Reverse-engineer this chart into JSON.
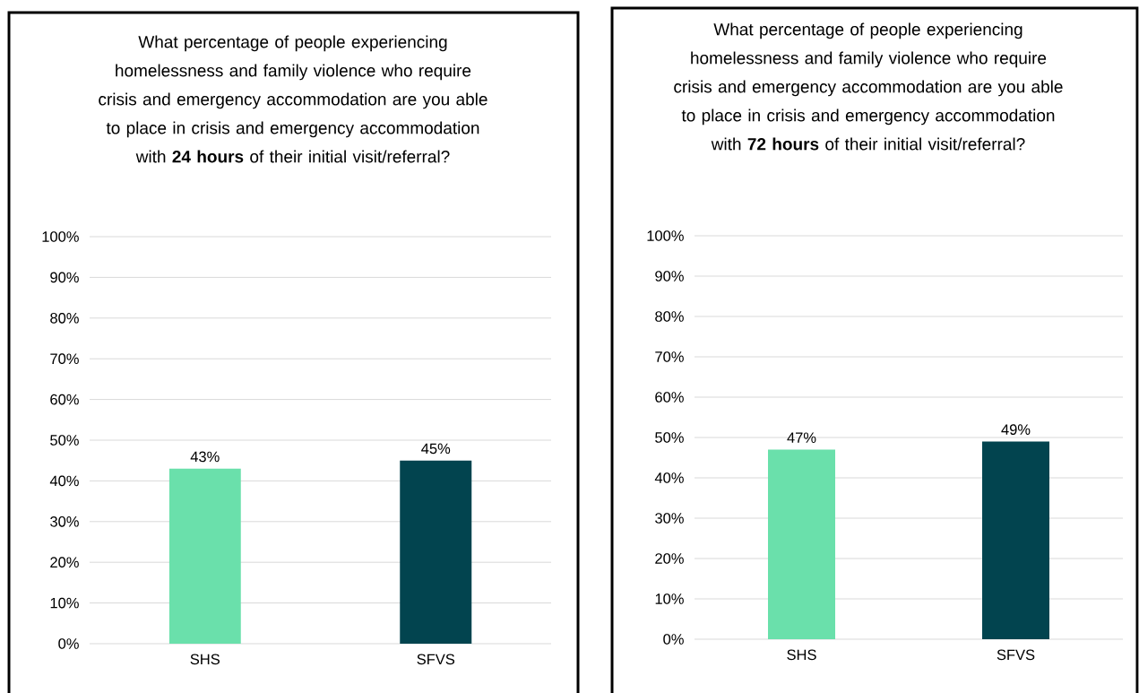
{
  "chart_data": [
    {
      "type": "bar",
      "title": "What percentage of people experiencing homelessness and family violence who require crisis and emergency accommodation are you able to place in crisis and emergency accommodation with **24 hours** of their initial visit/referral?",
      "categories": [
        "SHS",
        "SFVS"
      ],
      "values": [
        43,
        45
      ],
      "colors": [
        "#6ae0ab",
        "#02444f"
      ],
      "value_labels": [
        "43%",
        "45%"
      ],
      "ylim": [
        0,
        100
      ],
      "yticks": [
        {
          "value": 0,
          "label": "0%"
        },
        {
          "value": 10,
          "label": "10%"
        },
        {
          "value": 20,
          "label": "20%"
        },
        {
          "value": 30,
          "label": "30%"
        },
        {
          "value": 40,
          "label": "40%"
        },
        {
          "value": 50,
          "label": "50%"
        },
        {
          "value": 60,
          "label": "60%"
        },
        {
          "value": 70,
          "label": "70%"
        },
        {
          "value": 80,
          "label": "80%"
        },
        {
          "value": 90,
          "label": "90%"
        },
        {
          "value": 100,
          "label": "100%"
        }
      ],
      "grid": "y"
    },
    {
      "type": "bar",
      "title": "What percentage of people experiencing homelessness and family violence who require crisis and emergency accommodation are you able to place in crisis and emergency accommodation with **72 hours** of their initial visit/referral?",
      "categories": [
        "SHS",
        "SFVS"
      ],
      "values": [
        47,
        49
      ],
      "colors": [
        "#6ae0ab",
        "#02444f"
      ],
      "value_labels": [
        "47%",
        "49%"
      ],
      "ylim": [
        0,
        100
      ],
      "yticks": [
        {
          "value": 0,
          "label": "0%"
        },
        {
          "value": 10,
          "label": "10%"
        },
        {
          "value": 20,
          "label": "20%"
        },
        {
          "value": 30,
          "label": "30%"
        },
        {
          "value": 40,
          "label": "40%"
        },
        {
          "value": 50,
          "label": "50%"
        },
        {
          "value": 60,
          "label": "60%"
        },
        {
          "value": 70,
          "label": "70%"
        },
        {
          "value": 80,
          "label": "80%"
        },
        {
          "value": 90,
          "label": "90%"
        },
        {
          "value": 100,
          "label": "100%"
        }
      ],
      "grid": "y"
    }
  ]
}
